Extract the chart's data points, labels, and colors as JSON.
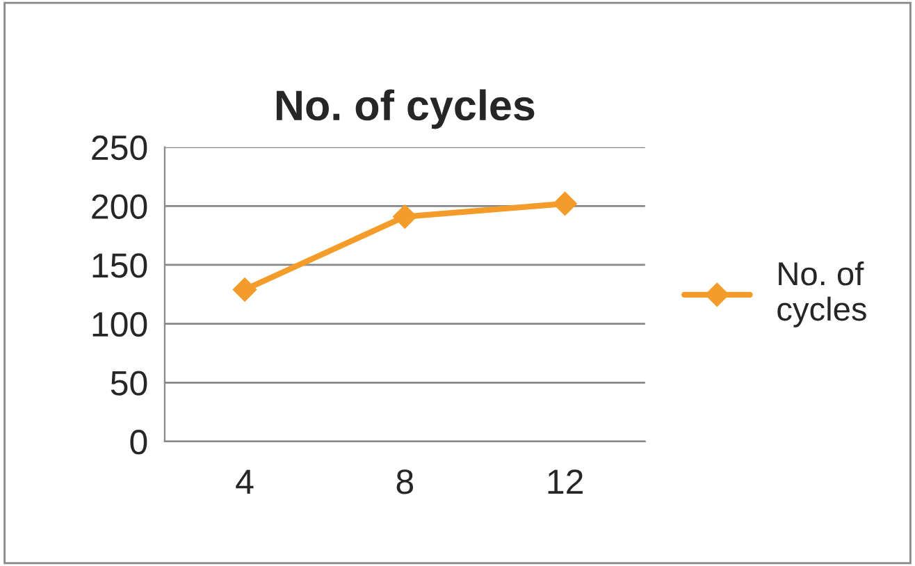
{
  "chart_data": {
    "type": "line",
    "title": "No. of cycles",
    "categories": [
      "4",
      "8",
      "12"
    ],
    "series": [
      {
        "name": "No. of\ncycles",
        "color": "#f39c2a",
        "values": [
          129,
          191,
          202
        ]
      }
    ],
    "ylim": [
      0,
      250
    ],
    "yticks": [
      0,
      50,
      100,
      150,
      200,
      250
    ],
    "grid": "y",
    "legend": "right",
    "marker": "diamond",
    "line_style": "solid"
  }
}
